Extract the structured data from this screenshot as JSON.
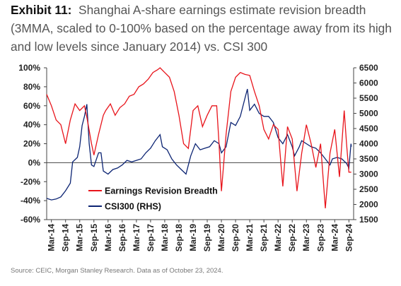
{
  "exhibit_label": "Exhibit 11:",
  "title_text": "Shanghai A-share earnings estimate revision breadth (3MMA, scaled to 0-100% based on the percentage away from its high and low levels since January 2014) vs. CSI 300",
  "source": "Source: CEIC, Morgan Stanley Research. Data as of October 23, 2024.",
  "colors": {
    "breadth": "#e8141b",
    "csi": "#0c2473"
  },
  "chart_data": {
    "type": "line",
    "x_tick_labels": [
      "Mar-14",
      "Sep-14",
      "Mar-15",
      "Sep-15",
      "Mar-16",
      "Sep-16",
      "Mar-17",
      "Sep-17",
      "Mar-18",
      "Sep-18",
      "Mar-19",
      "Sep-19",
      "Mar-20",
      "Sep-20",
      "Mar-21",
      "Sep-21",
      "Mar-22",
      "Sep-22",
      "Mar-23",
      "Sep-23",
      "Mar-24",
      "Sep-24"
    ],
    "y_left": {
      "ylim": [
        -60,
        100
      ],
      "ticks": [
        "-60%",
        "-40%",
        "-20%",
        "0%",
        "20%",
        "40%",
        "60%",
        "80%",
        "100%"
      ]
    },
    "y_right": {
      "ylim": [
        1500,
        6500
      ],
      "ticks": [
        "1500",
        "2000",
        "2500",
        "3000",
        "3500",
        "4000",
        "4500",
        "5000",
        "5500",
        "6000",
        "6500"
      ]
    },
    "legend_position": "bottom-left",
    "series": [
      {
        "name": "Earnings Revision Breadth",
        "axis": "left",
        "points": [
          [
            "2014-01",
            72
          ],
          [
            "2014-03",
            60
          ],
          [
            "2014-05",
            45
          ],
          [
            "2014-07",
            40
          ],
          [
            "2014-09",
            20
          ],
          [
            "2014-11",
            45
          ],
          [
            "2015-01",
            62
          ],
          [
            "2015-03",
            55
          ],
          [
            "2015-05",
            60
          ],
          [
            "2015-06",
            48
          ],
          [
            "2015-08",
            20
          ],
          [
            "2015-09",
            8
          ],
          [
            "2015-11",
            30
          ],
          [
            "2016-01",
            50
          ],
          [
            "2016-02",
            55
          ],
          [
            "2016-04",
            62
          ],
          [
            "2016-06",
            50
          ],
          [
            "2016-08",
            58
          ],
          [
            "2016-10",
            62
          ],
          [
            "2016-12",
            70
          ],
          [
            "2017-02",
            72
          ],
          [
            "2017-04",
            80
          ],
          [
            "2017-06",
            83
          ],
          [
            "2017-08",
            88
          ],
          [
            "2017-10",
            95
          ],
          [
            "2017-12",
            98
          ],
          [
            "2018-01",
            100
          ],
          [
            "2018-03",
            95
          ],
          [
            "2018-05",
            90
          ],
          [
            "2018-07",
            75
          ],
          [
            "2018-09",
            50
          ],
          [
            "2018-11",
            20
          ],
          [
            "2019-01",
            15
          ],
          [
            "2019-03",
            55
          ],
          [
            "2019-05",
            60
          ],
          [
            "2019-07",
            38
          ],
          [
            "2019-09",
            50
          ],
          [
            "2019-11",
            60
          ],
          [
            "2020-01",
            60
          ],
          [
            "2020-02",
            20
          ],
          [
            "2020-03",
            -30
          ],
          [
            "2020-05",
            30
          ],
          [
            "2020-07",
            75
          ],
          [
            "2020-09",
            90
          ],
          [
            "2020-11",
            95
          ],
          [
            "2021-01",
            93
          ],
          [
            "2021-03",
            92
          ],
          [
            "2021-05",
            75
          ],
          [
            "2021-07",
            60
          ],
          [
            "2021-09",
            35
          ],
          [
            "2021-11",
            25
          ],
          [
            "2022-01",
            40
          ],
          [
            "2022-03",
            35
          ],
          [
            "2022-05",
            -25
          ],
          [
            "2022-07",
            38
          ],
          [
            "2022-09",
            25
          ],
          [
            "2022-11",
            -30
          ],
          [
            "2023-01",
            10
          ],
          [
            "2023-03",
            40
          ],
          [
            "2023-05",
            20
          ],
          [
            "2023-07",
            -5
          ],
          [
            "2023-09",
            20
          ],
          [
            "2023-11",
            -48
          ],
          [
            "2024-01",
            10
          ],
          [
            "2024-03",
            35
          ],
          [
            "2024-05",
            -15
          ],
          [
            "2024-07",
            55
          ],
          [
            "2024-08",
            20
          ],
          [
            "2024-09",
            -10
          ],
          [
            "2024-10",
            -10
          ]
        ]
      },
      {
        "name": "CSI300 (RHS)",
        "axis": "right",
        "points": [
          [
            "2014-01",
            2200
          ],
          [
            "2014-03",
            2150
          ],
          [
            "2014-05",
            2180
          ],
          [
            "2014-07",
            2250
          ],
          [
            "2014-09",
            2450
          ],
          [
            "2014-11",
            2700
          ],
          [
            "2014-12",
            3400
          ],
          [
            "2015-02",
            3550
          ],
          [
            "2015-03",
            3900
          ],
          [
            "2015-04",
            4600
          ],
          [
            "2015-05",
            4900
          ],
          [
            "2015-06",
            5300
          ],
          [
            "2015-07",
            4000
          ],
          [
            "2015-08",
            3300
          ],
          [
            "2015-09",
            3250
          ],
          [
            "2015-11",
            3700
          ],
          [
            "2015-12",
            3700
          ],
          [
            "2016-01",
            3100
          ],
          [
            "2016-03",
            3000
          ],
          [
            "2016-05",
            3150
          ],
          [
            "2016-07",
            3200
          ],
          [
            "2016-09",
            3300
          ],
          [
            "2016-11",
            3450
          ],
          [
            "2017-01",
            3400
          ],
          [
            "2017-03",
            3450
          ],
          [
            "2017-05",
            3500
          ],
          [
            "2017-07",
            3700
          ],
          [
            "2017-09",
            3850
          ],
          [
            "2017-11",
            4100
          ],
          [
            "2018-01",
            4300
          ],
          [
            "2018-02",
            3900
          ],
          [
            "2018-04",
            3800
          ],
          [
            "2018-06",
            3500
          ],
          [
            "2018-08",
            3300
          ],
          [
            "2018-10",
            3150
          ],
          [
            "2018-12",
            3000
          ],
          [
            "2019-02",
            3600
          ],
          [
            "2019-04",
            4000
          ],
          [
            "2019-06",
            3800
          ],
          [
            "2019-08",
            3850
          ],
          [
            "2019-10",
            3900
          ],
          [
            "2019-12",
            4100
          ],
          [
            "2020-02",
            4000
          ],
          [
            "2020-03",
            3700
          ],
          [
            "2020-05",
            3900
          ],
          [
            "2020-07",
            4700
          ],
          [
            "2020-09",
            4600
          ],
          [
            "2020-11",
            4900
          ],
          [
            "2021-01",
            5500
          ],
          [
            "2021-02",
            5800
          ],
          [
            "2021-03",
            5100
          ],
          [
            "2021-05",
            5300
          ],
          [
            "2021-07",
            5000
          ],
          [
            "2021-09",
            4900
          ],
          [
            "2021-11",
            4900
          ],
          [
            "2022-01",
            4700
          ],
          [
            "2022-03",
            4200
          ],
          [
            "2022-05",
            4000
          ],
          [
            "2022-07",
            4300
          ],
          [
            "2022-09",
            3900
          ],
          [
            "2022-10",
            3600
          ],
          [
            "2022-12",
            3900
          ],
          [
            "2023-01",
            4100
          ],
          [
            "2023-03",
            4000
          ],
          [
            "2023-05",
            3900
          ],
          [
            "2023-07",
            3850
          ],
          [
            "2023-09",
            3700
          ],
          [
            "2023-11",
            3500
          ],
          [
            "2024-01",
            3300
          ],
          [
            "2024-02",
            3500
          ],
          [
            "2024-04",
            3550
          ],
          [
            "2024-06",
            3500
          ],
          [
            "2024-08",
            3350
          ],
          [
            "2024-09",
            3200
          ],
          [
            "2024-09-28",
            4000
          ],
          [
            "2024-10",
            3900
          ]
        ]
      }
    ]
  }
}
